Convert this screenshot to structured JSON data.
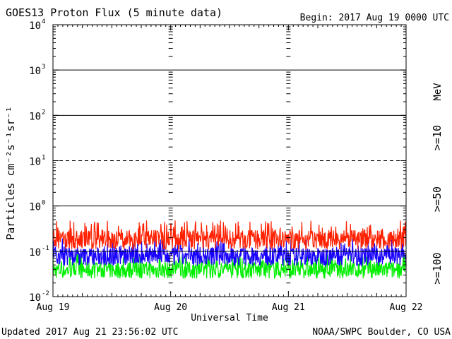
{
  "chart_data": {
    "type": "line",
    "title": "GOES13 Proton Flux (5 minute data)",
    "begin_label": "Begin: 2017 Aug 19 0000 UTC",
    "xlabel": "Universal Time",
    "ylabel": "Particles cm⁻²s⁻¹sr⁻¹",
    "unit_label": "MeV",
    "y_scale": "log",
    "ylim": [
      0.01,
      10000
    ],
    "x_ticks": [
      "Aug 19",
      "Aug 20",
      "Aug 21",
      "Aug 22"
    ],
    "y_ticks": [
      {
        "base": "10",
        "exp": "4"
      },
      {
        "base": "10",
        "exp": "3"
      },
      {
        "base": "10",
        "exp": "2"
      },
      {
        "base": "10",
        "exp": "1"
      },
      {
        "base": "10",
        "exp": "0"
      },
      {
        "base": "10",
        "exp": "-1"
      },
      {
        "base": "10",
        "exp": "-2"
      }
    ],
    "x_range_days": [
      0,
      3
    ],
    "series": [
      {
        "name": ">=10",
        "color": "#ff2000",
        "typical_value": 0.16,
        "min_value": 0.11,
        "max_value": 0.48
      },
      {
        "name": ">=50",
        "color": "#1800ff",
        "typical_value": 0.065,
        "min_value": 0.048,
        "max_value": 0.2
      },
      {
        "name": ">=100",
        "color": "#00ee00",
        "typical_value": 0.035,
        "min_value": 0.025,
        "max_value": 0.09
      }
    ],
    "reference_lines": [
      {
        "value": 1000,
        "style": "solid"
      },
      {
        "value": 100,
        "style": "solid"
      },
      {
        "value": 10,
        "style": "dashed"
      },
      {
        "value": 1,
        "style": "solid"
      },
      {
        "value": 0.1,
        "style": "solid"
      }
    ]
  },
  "footer": {
    "updated": "Updated 2017 Aug 21 23:56:02 UTC",
    "source": "NOAA/SWPC Boulder, CO USA"
  }
}
